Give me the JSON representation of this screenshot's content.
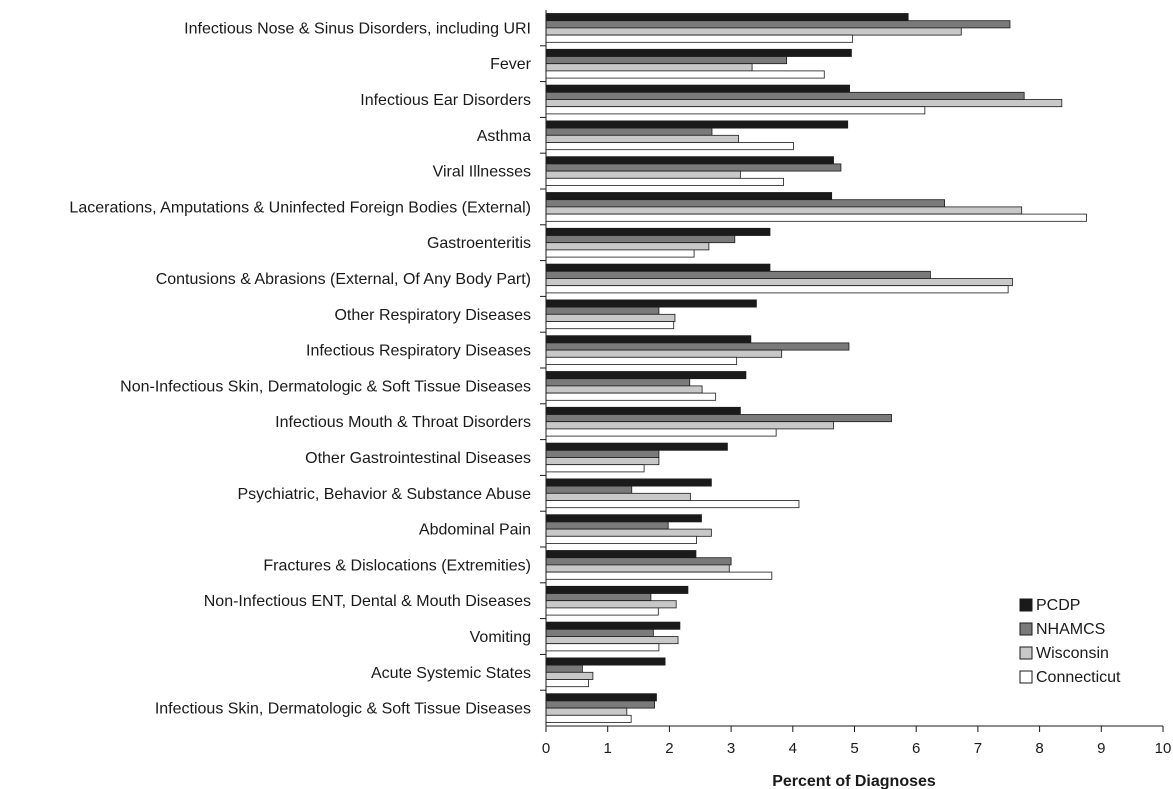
{
  "chart_data": {
    "type": "bar",
    "orientation": "horizontal",
    "title": "",
    "xlabel": "Percent of Diagnoses",
    "ylabel": "",
    "xlim": [
      0,
      10
    ],
    "xticks": [
      "0",
      "1",
      "2",
      "3",
      "4",
      "5",
      "6",
      "7",
      "8",
      "9",
      "10"
    ],
    "grid": false,
    "legend_position": "bottom-right",
    "categories": [
      "Infectious Nose & Sinus Disorders, including URI",
      "Fever",
      "Infectious Ear Disorders",
      "Asthma",
      "Viral Illnesses",
      "Lacerations, Amputations & Uninfected Foreign Bodies (External)",
      "Gastroenteritis",
      "Contusions & Abrasions (External, Of Any Body Part)",
      "Other Respiratory Diseases",
      "Infectious Respiratory Diseases",
      "Non-Infectious Skin, Dermatologic & Soft Tissue Diseases",
      "Infectious Mouth & Throat Disorders",
      "Other Gastrointestinal Diseases",
      "Psychiatric, Behavior & Substance Abuse",
      "Abdominal Pain",
      "Fractures & Dislocations (Extremities)",
      "Non-Infectious ENT, Dental & Mouth Diseases",
      "Vomiting",
      "Acute Systemic States",
      "Infectious Skin, Dermatologic & Soft Tissue Diseases"
    ],
    "series": [
      {
        "name": "PCDP",
        "color": "#1a1a1a",
        "values": [
          5.87,
          4.95,
          4.92,
          4.89,
          4.66,
          4.63,
          3.63,
          3.63,
          3.41,
          3.32,
          3.24,
          3.15,
          2.94,
          2.68,
          2.52,
          2.43,
          2.3,
          2.17,
          1.93,
          1.79
        ]
      },
      {
        "name": "NHAMCS",
        "color": "#7a7a7a",
        "values": [
          7.52,
          3.9,
          7.75,
          2.69,
          4.78,
          6.46,
          3.06,
          6.23,
          1.83,
          4.91,
          2.33,
          5.6,
          1.83,
          1.39,
          1.98,
          3.0,
          1.7,
          1.74,
          0.59,
          1.76
        ]
      },
      {
        "name": "Wisconsin",
        "color": "#c8c8c8",
        "values": [
          6.73,
          3.34,
          8.36,
          3.12,
          3.15,
          7.71,
          2.64,
          7.56,
          2.09,
          3.82,
          2.53,
          4.66,
          1.83,
          2.34,
          2.68,
          2.97,
          2.11,
          2.14,
          0.76,
          1.31
        ]
      },
      {
        "name": "Connecticut",
        "color": "#ffffff",
        "values": [
          4.97,
          4.51,
          6.14,
          4.01,
          3.85,
          8.76,
          2.4,
          7.49,
          2.07,
          3.09,
          2.75,
          3.73,
          1.59,
          4.1,
          2.44,
          3.66,
          1.82,
          1.83,
          0.69,
          1.38
        ]
      }
    ]
  }
}
